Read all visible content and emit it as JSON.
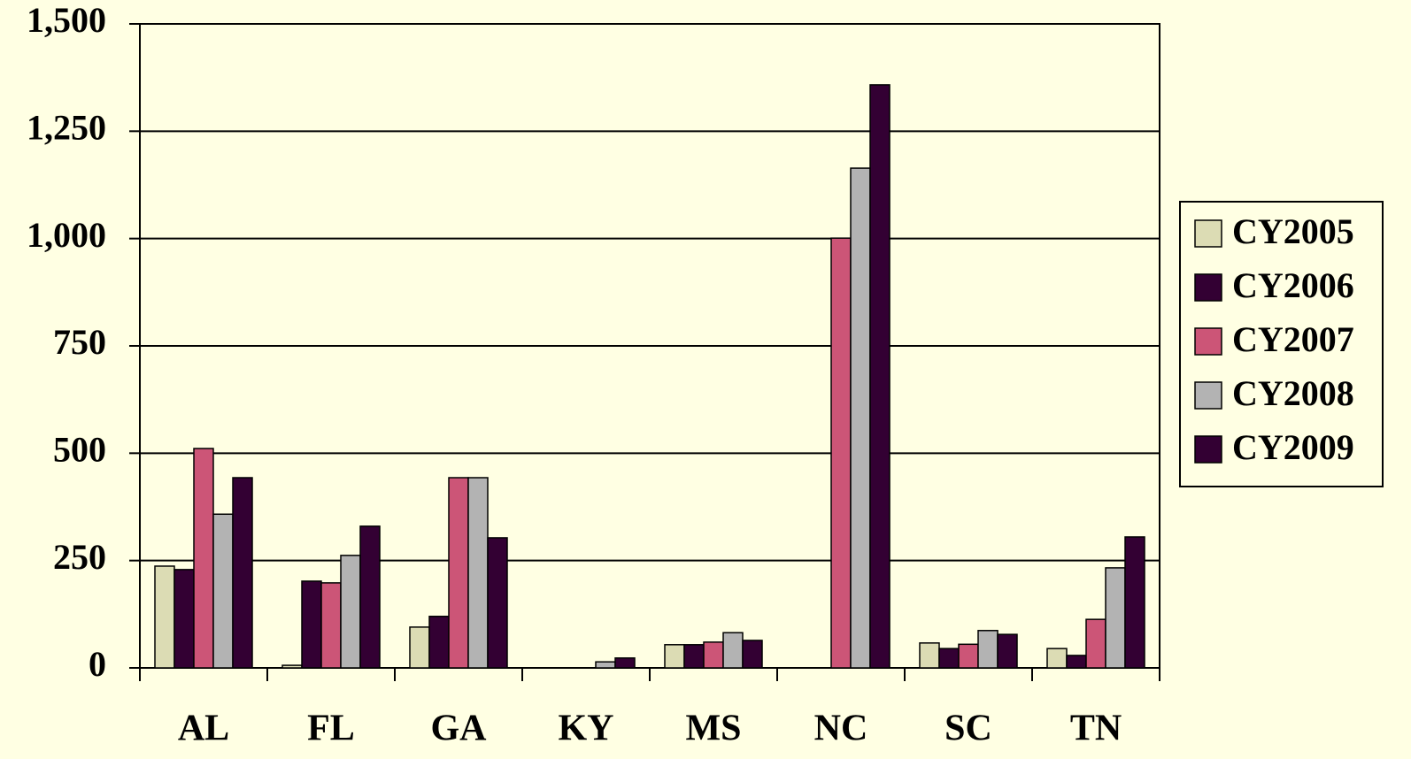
{
  "chart_data": {
    "type": "bar",
    "categories": [
      "AL",
      "FL",
      "GA",
      "KY",
      "MS",
      "NC",
      "SC",
      "TN"
    ],
    "series": [
      {
        "name": "CY2005",
        "color": "#dcdcb4",
        "values": [
          237,
          6,
          95,
          0,
          54,
          0,
          58,
          45
        ]
      },
      {
        "name": "CY2006",
        "color": "#330033",
        "values": [
          229,
          202,
          120,
          0,
          54,
          0,
          45,
          29
        ]
      },
      {
        "name": "CY2007",
        "color": "#cc5577",
        "values": [
          511,
          198,
          443,
          0,
          60,
          1001,
          55,
          113
        ]
      },
      {
        "name": "CY2008",
        "color": "#b3b3b3",
        "values": [
          358,
          262,
          443,
          14,
          82,
          1164,
          87,
          233
        ]
      },
      {
        "name": "CY2009",
        "color": "#330033",
        "values": [
          443,
          330,
          303,
          23,
          64,
          1358,
          78,
          305
        ]
      }
    ],
    "ylim": [
      0,
      1500
    ],
    "yticks": [
      0,
      250,
      500,
      750,
      {
        "value": 1000,
        "label": "1,000"
      },
      {
        "value": 1250,
        "label": "1,250"
      },
      {
        "value": 1500,
        "label": "1,500"
      }
    ],
    "grid": true,
    "legend": "right"
  }
}
